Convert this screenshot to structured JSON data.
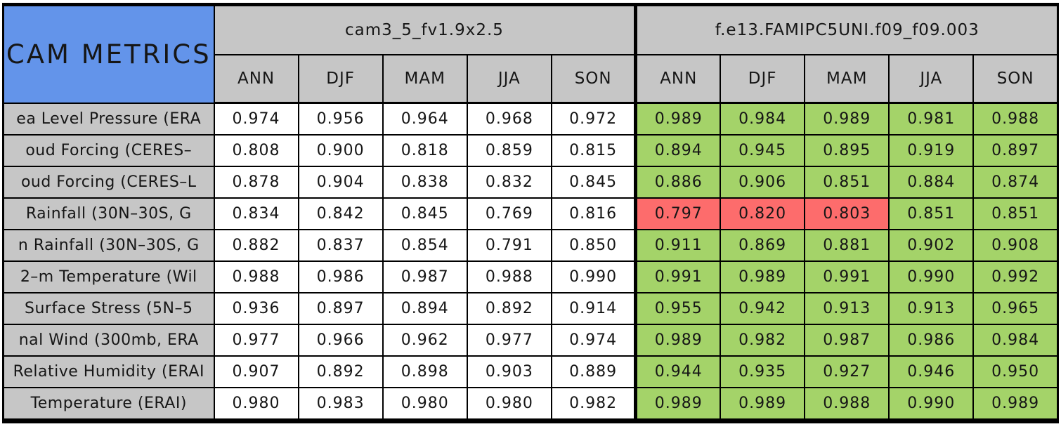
{
  "chart_data": {
    "type": "table",
    "title": "CAM METRICS",
    "models": [
      "cam3_5_fv1.9x2.5",
      "f.e13.FAMIPC5UNI.f09_f09.003"
    ],
    "seasons": [
      "ANN",
      "DJF",
      "MAM",
      "JJA",
      "SON"
    ],
    "colors": {
      "title_bg": "#6394ea",
      "header_bg": "#c6c6c6",
      "model1_cell_bg": "#ffffff",
      "better_bg": "#a4d369",
      "worse_bg": "#fd6c6c",
      "border": "#000000"
    },
    "rows": [
      {
        "label": "ea Level Pressure (ERA",
        "model1": [
          "0.974",
          "0.956",
          "0.964",
          "0.968",
          "0.972"
        ],
        "model2": [
          "0.989",
          "0.984",
          "0.989",
          "0.981",
          "0.988"
        ],
        "model2_flags": [
          "better",
          "better",
          "better",
          "better",
          "better"
        ]
      },
      {
        "label": "oud Forcing (CERES–",
        "model1": [
          "0.808",
          "0.900",
          "0.818",
          "0.859",
          "0.815"
        ],
        "model2": [
          "0.894",
          "0.945",
          "0.895",
          "0.919",
          "0.897"
        ],
        "model2_flags": [
          "better",
          "better",
          "better",
          "better",
          "better"
        ]
      },
      {
        "label": "oud Forcing (CERES–L",
        "model1": [
          "0.878",
          "0.904",
          "0.838",
          "0.832",
          "0.845"
        ],
        "model2": [
          "0.886",
          "0.906",
          "0.851",
          "0.884",
          "0.874"
        ],
        "model2_flags": [
          "better",
          "better",
          "better",
          "better",
          "better"
        ]
      },
      {
        "label": "Rainfall (30N–30S, G",
        "model1": [
          "0.834",
          "0.842",
          "0.845",
          "0.769",
          "0.816"
        ],
        "model2": [
          "0.797",
          "0.820",
          "0.803",
          "0.851",
          "0.851"
        ],
        "model2_flags": [
          "worse",
          "worse",
          "worse",
          "better",
          "better"
        ]
      },
      {
        "label": "n Rainfall (30N–30S, G",
        "model1": [
          "0.882",
          "0.837",
          "0.854",
          "0.791",
          "0.850"
        ],
        "model2": [
          "0.911",
          "0.869",
          "0.881",
          "0.902",
          "0.908"
        ],
        "model2_flags": [
          "better",
          "better",
          "better",
          "better",
          "better"
        ]
      },
      {
        "label": "2–m Temperature (Wil",
        "model1": [
          "0.988",
          "0.986",
          "0.987",
          "0.988",
          "0.990"
        ],
        "model2": [
          "0.991",
          "0.989",
          "0.991",
          "0.990",
          "0.992"
        ],
        "model2_flags": [
          "better",
          "better",
          "better",
          "better",
          "better"
        ]
      },
      {
        "label": "Surface Stress (5N–5",
        "model1": [
          "0.936",
          "0.897",
          "0.894",
          "0.892",
          "0.914"
        ],
        "model2": [
          "0.955",
          "0.942",
          "0.913",
          "0.913",
          "0.965"
        ],
        "model2_flags": [
          "better",
          "better",
          "better",
          "better",
          "better"
        ]
      },
      {
        "label": "nal Wind (300mb, ERA",
        "model1": [
          "0.977",
          "0.966",
          "0.962",
          "0.977",
          "0.974"
        ],
        "model2": [
          "0.989",
          "0.982",
          "0.987",
          "0.986",
          "0.984"
        ],
        "model2_flags": [
          "better",
          "better",
          "better",
          "better",
          "better"
        ]
      },
      {
        "label": "Relative Humidity (ERAI",
        "model1": [
          "0.907",
          "0.892",
          "0.898",
          "0.903",
          "0.889"
        ],
        "model2": [
          "0.944",
          "0.935",
          "0.927",
          "0.946",
          "0.950"
        ],
        "model2_flags": [
          "better",
          "better",
          "better",
          "better",
          "better"
        ]
      },
      {
        "label": "Temperature (ERAI)",
        "model1": [
          "0.980",
          "0.983",
          "0.980",
          "0.980",
          "0.982"
        ],
        "model2": [
          "0.989",
          "0.989",
          "0.988",
          "0.990",
          "0.989"
        ],
        "model2_flags": [
          "better",
          "better",
          "better",
          "better",
          "better"
        ]
      }
    ]
  }
}
